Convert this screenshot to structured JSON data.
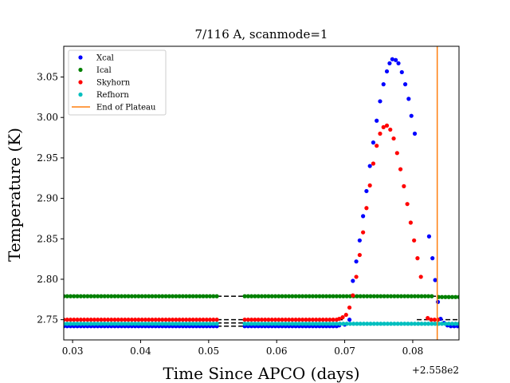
{
  "chart_data": {
    "type": "scatter",
    "title": "7/116 A, scanmode=1",
    "xlabel": "Time Since APCO (days)",
    "ylabel": "Temperature (K)",
    "x_offset_label": "+2.558e2",
    "xlim": [
      0.0287,
      0.0868
    ],
    "ylim": [
      2.725,
      3.088
    ],
    "x_ticks": [
      0.03,
      0.04,
      0.05,
      0.06,
      0.07,
      0.08
    ],
    "x_tick_labels": [
      "0.03",
      "0.04",
      "0.05",
      "0.06",
      "0.07",
      "0.08"
    ],
    "y_ticks": [
      2.75,
      2.8,
      2.85,
      2.9,
      2.95,
      3.0,
      3.05
    ],
    "y_tick_labels": [
      "2.75",
      "2.80",
      "2.85",
      "2.90",
      "2.95",
      "3.00",
      "3.05"
    ],
    "legend_position": "upper-left",
    "series": [
      {
        "name": "Xcal",
        "color": "#0000ff",
        "style": "points",
        "segments": [
          {
            "x_start": 0.0287,
            "x_end": 0.0512,
            "step": 0.0005,
            "y": 2.742
          },
          {
            "x_start": 0.0553,
            "x_end": 0.069,
            "step": 0.0005,
            "y": 2.742
          }
        ],
        "points": [
          {
            "x": 0.0692,
            "y": 2.743
          },
          {
            "x": 0.07,
            "y": 2.744
          },
          {
            "x": 0.0707,
            "y": 2.75
          },
          {
            "x": 0.0712,
            "y": 2.798
          },
          {
            "x": 0.0717,
            "y": 2.822
          },
          {
            "x": 0.0722,
            "y": 2.848
          },
          {
            "x": 0.0727,
            "y": 2.878
          },
          {
            "x": 0.0732,
            "y": 2.909
          },
          {
            "x": 0.0737,
            "y": 2.94
          },
          {
            "x": 0.0742,
            "y": 2.969
          },
          {
            "x": 0.0747,
            "y": 2.996
          },
          {
            "x": 0.0752,
            "y": 3.02
          },
          {
            "x": 0.0757,
            "y": 3.041
          },
          {
            "x": 0.0762,
            "y": 3.057
          },
          {
            "x": 0.0766,
            "y": 3.067
          },
          {
            "x": 0.077,
            "y": 3.072
          },
          {
            "x": 0.0775,
            "y": 3.071
          },
          {
            "x": 0.0779,
            "y": 3.067
          },
          {
            "x": 0.0784,
            "y": 3.056
          },
          {
            "x": 0.0789,
            "y": 3.041
          },
          {
            "x": 0.0794,
            "y": 3.023
          },
          {
            "x": 0.0798,
            "y": 3.002
          },
          {
            "x": 0.0803,
            "y": 2.98
          },
          {
            "x": 0.0824,
            "y": 2.853
          },
          {
            "x": 0.0829,
            "y": 2.826
          },
          {
            "x": 0.0833,
            "y": 2.799
          },
          {
            "x": 0.0837,
            "y": 2.772
          },
          {
            "x": 0.0841,
            "y": 2.751
          },
          {
            "x": 0.0846,
            "y": 2.746
          },
          {
            "x": 0.0851,
            "y": 2.743
          },
          {
            "x": 0.0856,
            "y": 2.742
          },
          {
            "x": 0.0861,
            "y": 2.742
          },
          {
            "x": 0.0866,
            "y": 2.742
          }
        ]
      },
      {
        "name": "Ical",
        "color": "#008000",
        "style": "points",
        "segments": [
          {
            "x_start": 0.0287,
            "x_end": 0.0512,
            "step": 0.0005,
            "y": 2.779
          },
          {
            "x_start": 0.0553,
            "x_end": 0.083,
            "step": 0.0005,
            "y": 2.779
          },
          {
            "x_start": 0.0838,
            "x_end": 0.0868,
            "step": 0.0005,
            "y": 2.778
          }
        ],
        "points": []
      },
      {
        "name": "Skyhorn",
        "color": "#ff0000",
        "style": "points",
        "segments": [
          {
            "x_start": 0.0287,
            "x_end": 0.0512,
            "step": 0.0005,
            "y": 2.75
          },
          {
            "x_start": 0.0553,
            "x_end": 0.069,
            "step": 0.0005,
            "y": 2.75
          }
        ],
        "points": [
          {
            "x": 0.0692,
            "y": 2.751
          },
          {
            "x": 0.0697,
            "y": 2.753
          },
          {
            "x": 0.0702,
            "y": 2.756
          },
          {
            "x": 0.0707,
            "y": 2.765
          },
          {
            "x": 0.0712,
            "y": 2.78
          },
          {
            "x": 0.0717,
            "y": 2.803
          },
          {
            "x": 0.0722,
            "y": 2.83
          },
          {
            "x": 0.0727,
            "y": 2.858
          },
          {
            "x": 0.0732,
            "y": 2.888
          },
          {
            "x": 0.0737,
            "y": 2.916
          },
          {
            "x": 0.0742,
            "y": 2.943
          },
          {
            "x": 0.0747,
            "y": 2.965
          },
          {
            "x": 0.0752,
            "y": 2.98
          },
          {
            "x": 0.0757,
            "y": 2.988
          },
          {
            "x": 0.0762,
            "y": 2.99
          },
          {
            "x": 0.0767,
            "y": 2.985
          },
          {
            "x": 0.0772,
            "y": 2.974
          },
          {
            "x": 0.0777,
            "y": 2.956
          },
          {
            "x": 0.0782,
            "y": 2.936
          },
          {
            "x": 0.0787,
            "y": 2.915
          },
          {
            "x": 0.0792,
            "y": 2.893
          },
          {
            "x": 0.0797,
            "y": 2.87
          },
          {
            "x": 0.0802,
            "y": 2.848
          },
          {
            "x": 0.0807,
            "y": 2.826
          },
          {
            "x": 0.0812,
            "y": 2.803
          },
          {
            "x": 0.0822,
            "y": 2.752
          },
          {
            "x": 0.0827,
            "y": 2.75
          },
          {
            "x": 0.0832,
            "y": 2.75
          },
          {
            "x": 0.0837,
            "y": 2.75
          }
        ]
      },
      {
        "name": "Refhorn",
        "color": "#00bfbf",
        "style": "points",
        "segments": [
          {
            "x_start": 0.0287,
            "x_end": 0.0512,
            "step": 0.0005,
            "y": 2.745
          },
          {
            "x_start": 0.0553,
            "x_end": 0.0868,
            "step": 0.0005,
            "y": 2.745
          }
        ],
        "points": []
      },
      {
        "name": "End of Plateau",
        "color": "#ff7f0e",
        "style": "vline",
        "x": 0.0836
      }
    ],
    "dashed_gap_lines": [
      {
        "x_start": 0.0512,
        "x_end": 0.0553,
        "y": 2.779
      },
      {
        "x_start": 0.0512,
        "x_end": 0.0553,
        "y": 2.75
      },
      {
        "x_start": 0.0512,
        "x_end": 0.0553,
        "y": 2.746
      },
      {
        "x_start": 0.0512,
        "x_end": 0.0553,
        "y": 2.742
      },
      {
        "x_start": 0.069,
        "x_end": 0.07,
        "y": 2.75
      },
      {
        "x_start": 0.0806,
        "x_end": 0.0868,
        "y": 2.779
      },
      {
        "x_start": 0.0806,
        "x_end": 0.0868,
        "y": 2.75
      },
      {
        "x_start": 0.0806,
        "x_end": 0.0868,
        "y": 2.746
      }
    ]
  }
}
